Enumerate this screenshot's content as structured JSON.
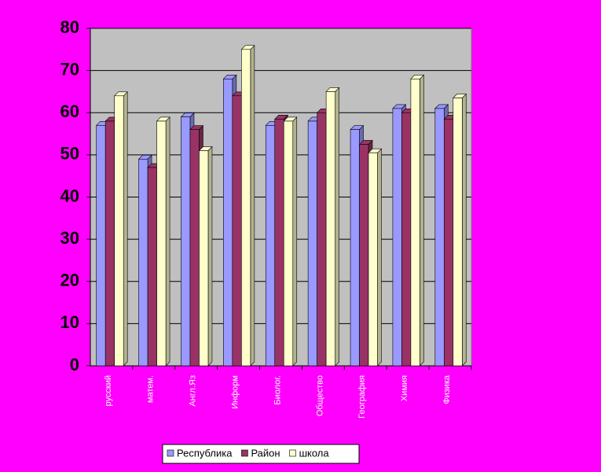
{
  "chart_data": {
    "type": "bar",
    "categories": [
      "русский",
      "матем.",
      "Англ.Яз",
      "Информ",
      "Биолог.",
      "Общество",
      "География",
      "Химия",
      "Физика"
    ],
    "series": [
      {
        "name": "Республика",
        "color": "#9999ff",
        "values": [
          57,
          49,
          59,
          68,
          57,
          58,
          56,
          61,
          61
        ]
      },
      {
        "name": "Район",
        "color": "#993366",
        "values": [
          58,
          47,
          56,
          64,
          58.5,
          60,
          52.5,
          60,
          58.5
        ]
      },
      {
        "name": "школа",
        "color": "#ffffcc",
        "values": [
          64,
          58,
          51,
          75,
          58,
          65,
          50.5,
          68,
          63.5
        ]
      }
    ],
    "ylim": [
      0,
      80
    ],
    "yticks": [
      0,
      10,
      20,
      30,
      40,
      50,
      60,
      70,
      80
    ],
    "grid": true,
    "legend": "bottom"
  }
}
